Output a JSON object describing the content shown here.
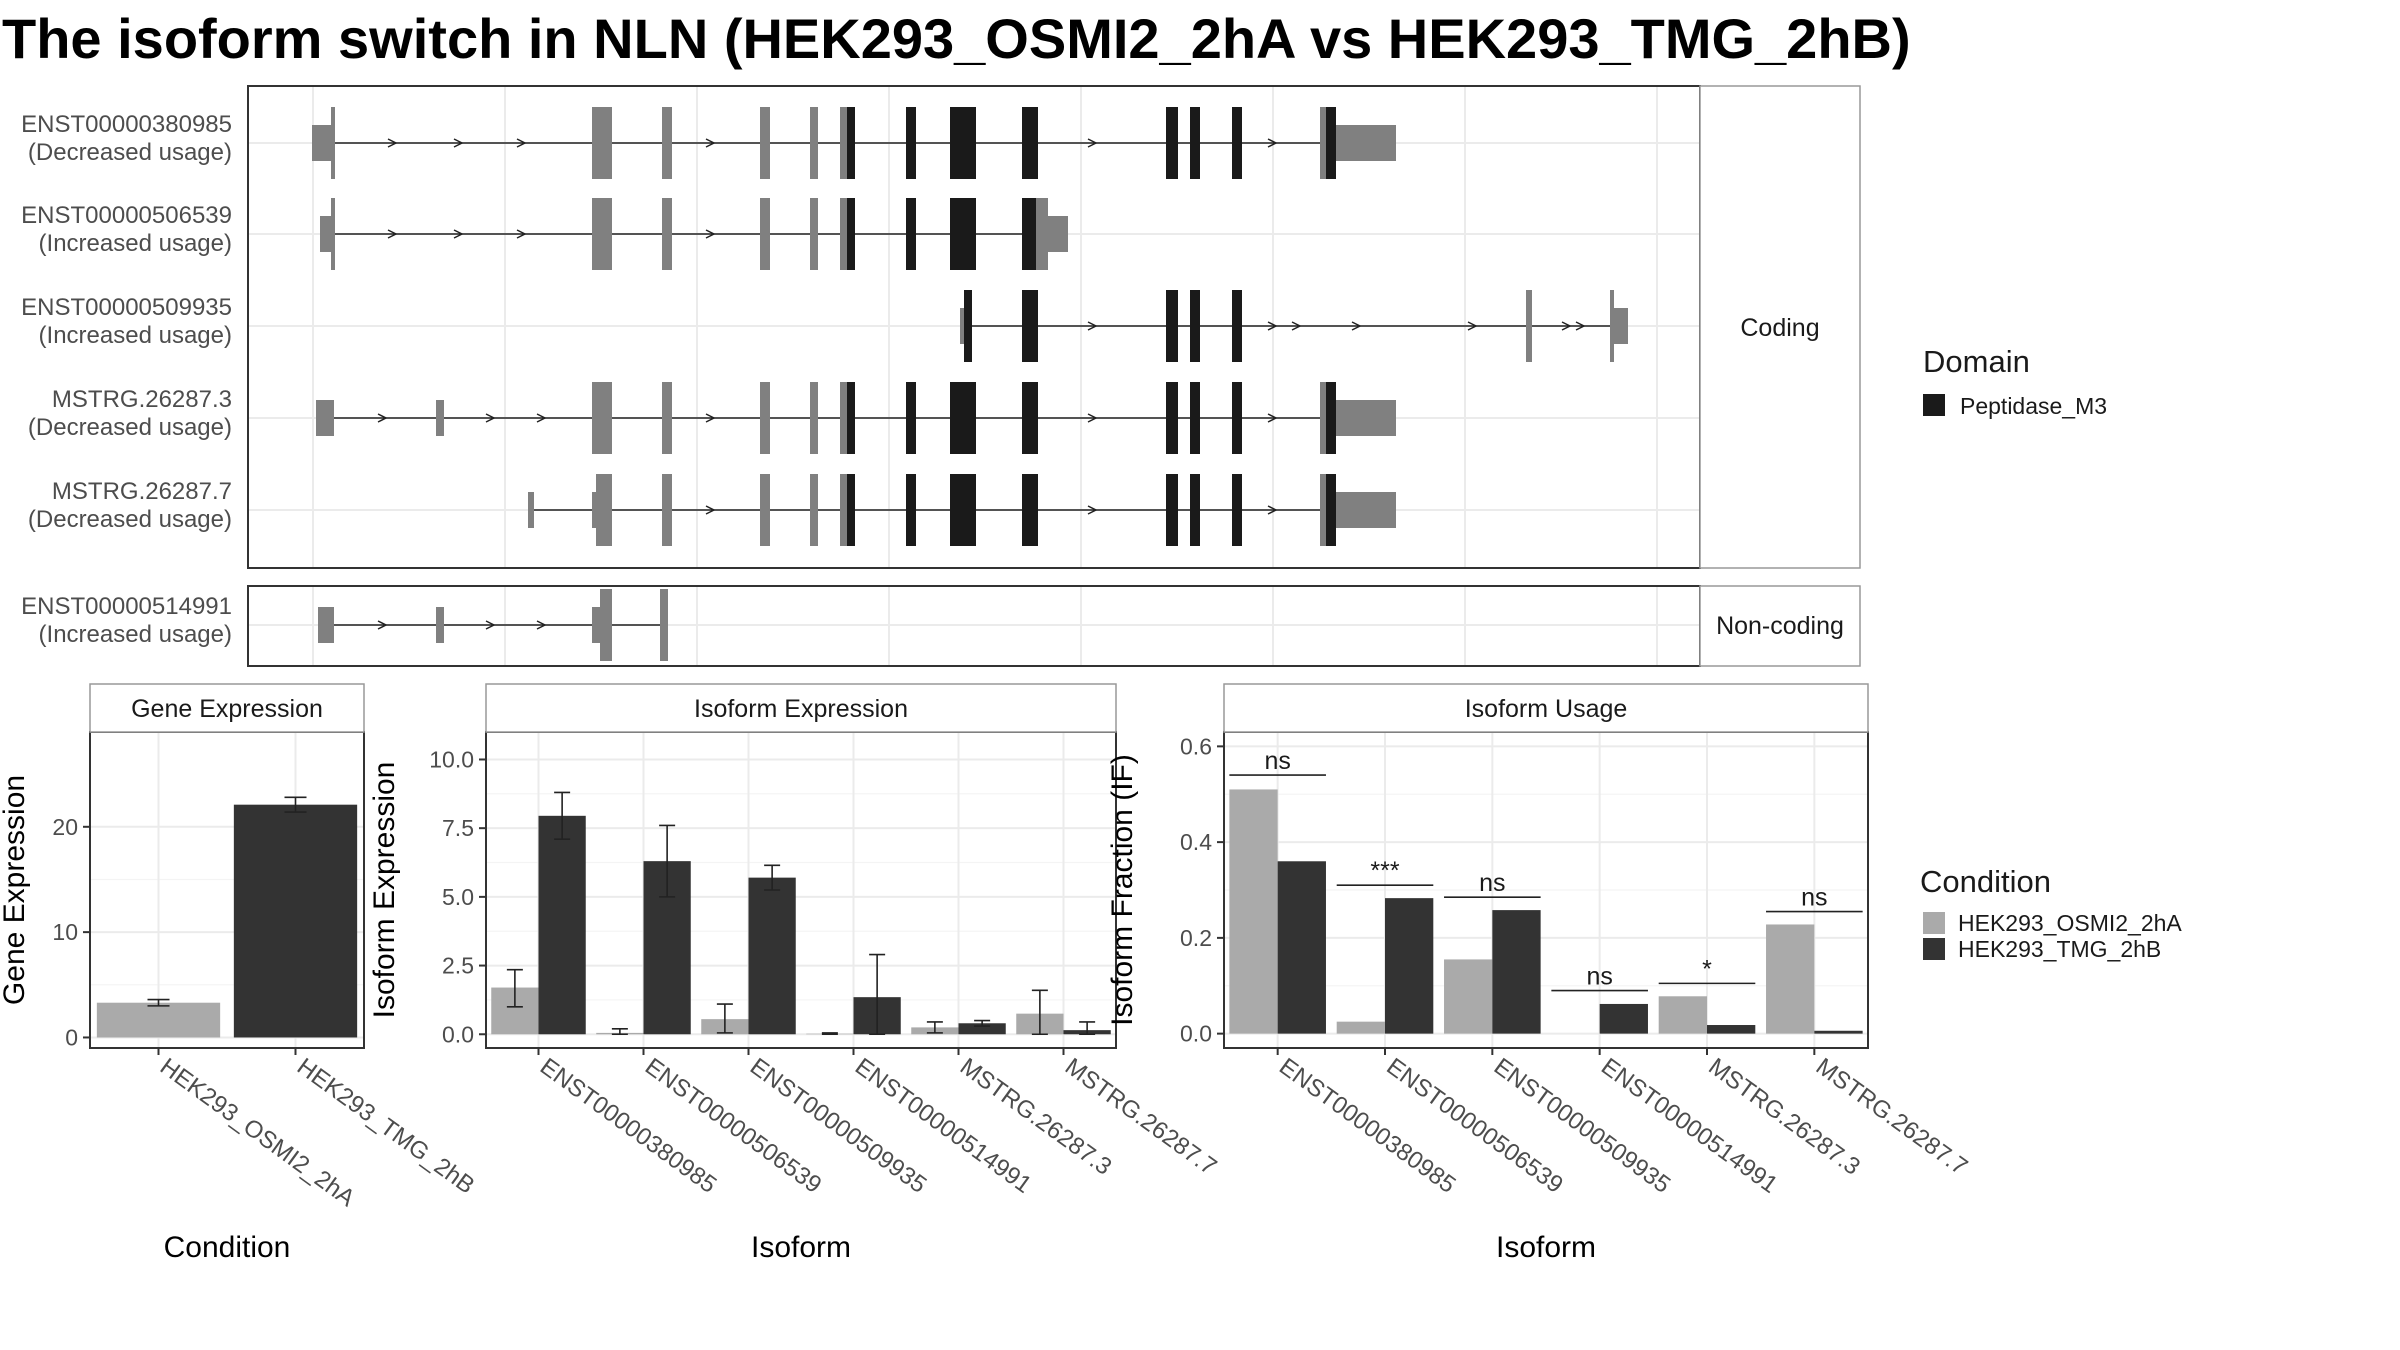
{
  "title": "The isoform switch in NLN (HEK293_OSMI2_2hA vs HEK293_TMG_2hB)",
  "colors": {
    "cond_a": "#aaaaaa",
    "cond_b": "#333333",
    "utr": "#808080",
    "domain": "#1a1a1a",
    "frame": "#333333",
    "strip_border": "#999999",
    "grid": "#ebebeb"
  },
  "structure": {
    "facet_coding": "Coding",
    "facet_noncoding": "Non-coding",
    "coding_transcripts": [
      {
        "id": "ENST00000380985",
        "usage": "(Decreased usage)"
      },
      {
        "id": "ENST00000506539",
        "usage": "(Increased usage)"
      },
      {
        "id": "ENST00000509935",
        "usage": "(Increased usage)"
      },
      {
        "id": "MSTRG.26287.3",
        "usage": "(Decreased usage)"
      },
      {
        "id": "MSTRG.26287.7",
        "usage": "(Decreased usage)"
      }
    ],
    "noncoding_transcripts": [
      {
        "id": "ENST00000514991",
        "usage": "(Increased usage)"
      }
    ]
  },
  "domain_legend": {
    "title": "Domain",
    "items": [
      "Peptidase_M3"
    ]
  },
  "condition_legend": {
    "title": "Condition",
    "items": [
      "HEK293_OSMI2_2hA",
      "HEK293_TMG_2hB"
    ]
  },
  "chart_data": [
    {
      "type": "bar",
      "title": "Gene Expression",
      "xlabel": "Condition",
      "ylabel": "Gene Expression",
      "ylim": [
        -1,
        29
      ],
      "yticks": [
        0,
        10,
        20
      ],
      "categories": [
        "HEK293_OSMI2_2hA",
        "HEK293_TMG_2hB"
      ],
      "values": [
        3.3,
        22.1
      ],
      "errors": [
        [
          3.0,
          3.6
        ],
        [
          21.4,
          22.8
        ]
      ]
    },
    {
      "type": "bar",
      "title": "Isoform Expression",
      "xlabel": "Isoform",
      "ylabel": "Isoform Expression",
      "ylim": [
        -0.5,
        11
      ],
      "yticks": [
        0.0,
        2.5,
        5.0,
        7.5,
        10.0
      ],
      "categories": [
        "ENST00000380985",
        "ENST00000506539",
        "ENST00000509935",
        "ENST00000514991",
        "MSTRG.26287.3",
        "MSTRG.26287.7"
      ],
      "series": [
        {
          "name": "HEK293_OSMI2_2hA",
          "values": [
            1.7,
            0.05,
            0.55,
            0.02,
            0.25,
            0.75
          ],
          "errors": [
            [
              1.0,
              2.35
            ],
            [
              0.0,
              0.2
            ],
            [
              0.05,
              1.1
            ],
            [
              0.0,
              0.05
            ],
            [
              0.05,
              0.45
            ],
            [
              0.0,
              1.6
            ]
          ]
        },
        {
          "name": "HEK293_TMG_2hB",
          "values": [
            7.95,
            6.3,
            5.7,
            1.35,
            0.4,
            0.15
          ],
          "errors": [
            [
              7.1,
              8.8
            ],
            [
              5.0,
              7.6
            ],
            [
              5.25,
              6.15
            ],
            [
              0.0,
              2.9
            ],
            [
              0.3,
              0.5
            ],
            [
              0.0,
              0.45
            ]
          ]
        }
      ]
    },
    {
      "type": "bar",
      "title": "Isoform Usage",
      "xlabel": "Isoform",
      "ylabel": "Isoform Fraction (IF)",
      "ylim": [
        -0.03,
        0.63
      ],
      "yticks": [
        0.0,
        0.2,
        0.4,
        0.6
      ],
      "categories": [
        "ENST00000380985",
        "ENST00000506539",
        "ENST00000509935",
        "ENST00000514991",
        "MSTRG.26287.3",
        "MSTRG.26287.7"
      ],
      "series": [
        {
          "name": "HEK293_OSMI2_2hA",
          "values": [
            0.51,
            0.025,
            0.155,
            0.0,
            0.078,
            0.228
          ]
        },
        {
          "name": "HEK293_TMG_2hB",
          "values": [
            0.36,
            0.283,
            0.258,
            0.062,
            0.018,
            0.006
          ]
        }
      ],
      "significance": [
        "ns",
        "***",
        "ns",
        "ns",
        "*",
        "ns"
      ],
      "significance_y": [
        0.54,
        0.31,
        0.285,
        0.09,
        0.105,
        0.255
      ]
    }
  ]
}
